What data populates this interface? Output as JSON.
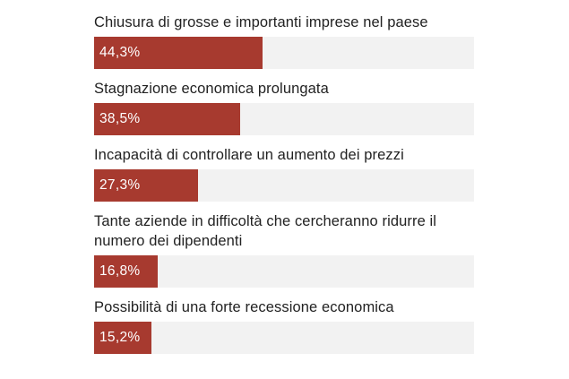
{
  "chart_data": {
    "type": "bar",
    "orientation": "horizontal",
    "categories": [
      "Chiusura di grosse e importanti imprese nel paese",
      "Stagnazione economica prolungata",
      "Incapacità di controllare un aumento dei prezzi",
      "Tante aziende in difficoltà che cercheranno ridurre il numero dei dipendenti",
      "Possibilità di una forte recessione economica"
    ],
    "values": [
      44.3,
      38.5,
      27.3,
      16.8,
      15.2
    ],
    "value_labels": [
      "44,3%",
      "38,5%",
      "27,3%",
      "16,8%",
      "15,2%"
    ],
    "xlim": [
      0,
      100
    ],
    "grid": false,
    "legend": "none",
    "bar_color": "#a73a2f",
    "track_color": "#f2f2f2"
  }
}
